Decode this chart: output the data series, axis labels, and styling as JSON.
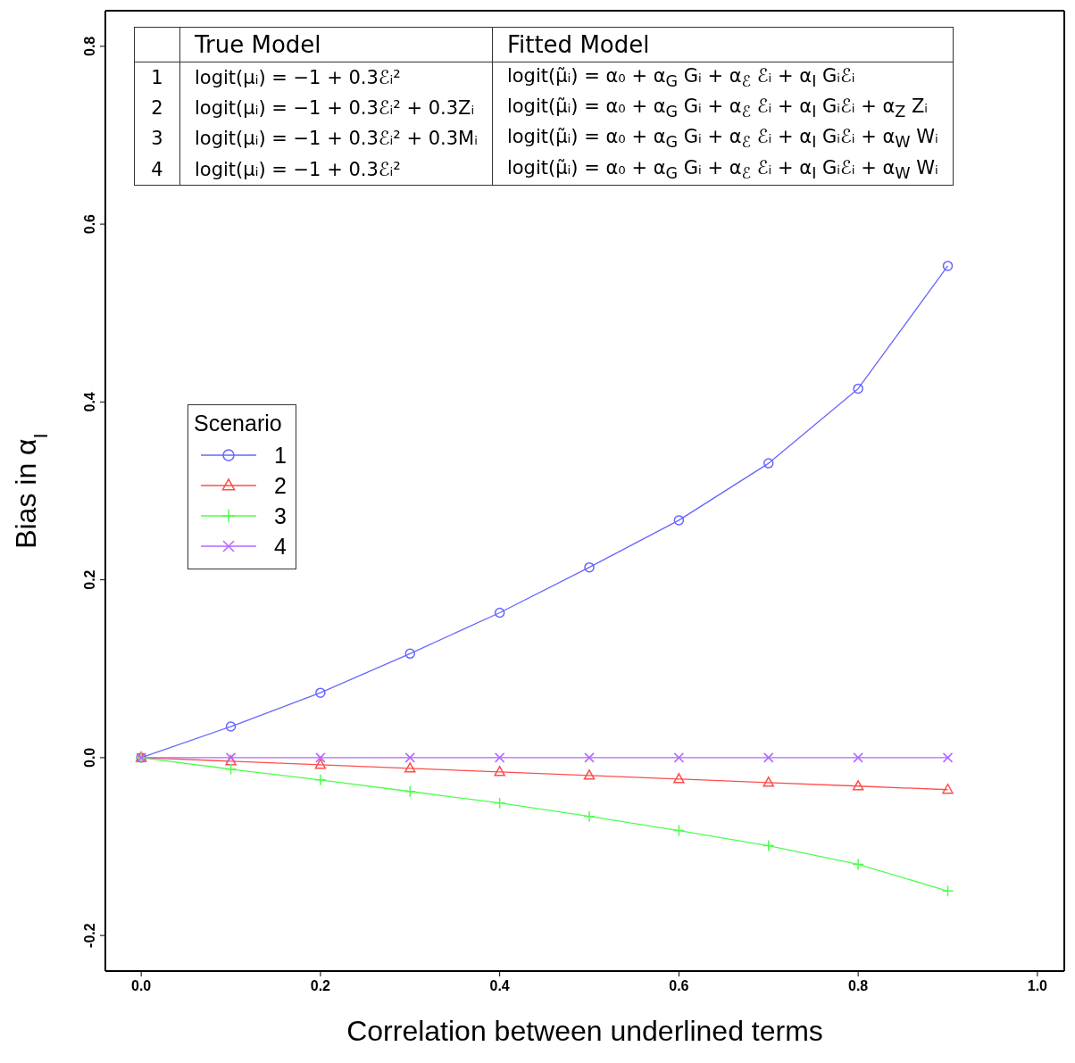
{
  "chart_data": {
    "type": "line",
    "xlabel": "Correlation between underlined terms",
    "ylabel": "Bias in α$_{I}$",
    "legend_title": "Scenario",
    "legend": "left",
    "x": [
      0,
      0.1,
      0.2,
      0.3,
      0.4,
      0.5,
      0.6,
      0.7,
      0.8,
      0.9
    ],
    "series": [
      {
        "name": "1",
        "color": "#6666ff",
        "marker": "circle",
        "values": [
          0,
          0.035,
          0.073,
          0.117,
          0.163,
          0.214,
          0.267,
          0.331,
          0.415,
          0.553
        ]
      },
      {
        "name": "2",
        "color": "#ff4d4d",
        "marker": "triangle",
        "values": [
          0,
          -0.004,
          -0.008,
          -0.012,
          -0.016,
          -0.02,
          -0.024,
          -0.028,
          -0.032,
          -0.036
        ]
      },
      {
        "name": "3",
        "color": "#4dff4d",
        "marker": "plus",
        "values": [
          0,
          -0.013,
          -0.025,
          -0.038,
          -0.051,
          -0.066,
          -0.082,
          -0.099,
          -0.12,
          -0.15
        ]
      },
      {
        "name": "4",
        "color": "#b266ff",
        "marker": "cross",
        "values": [
          0,
          0,
          0,
          0,
          0,
          0,
          0,
          0,
          0,
          0
        ]
      }
    ],
    "xlim": [
      -0.04,
      1.03
    ],
    "xticks": [
      {
        "value": 0,
        "label": "0.0"
      },
      0.2,
      0.4,
      0.6,
      0.8,
      {
        "value": 1,
        "label": "1.0"
      }
    ],
    "ylim": [
      -0.24,
      0.84
    ],
    "yticks": [
      -0.2,
      {
        "value": 0,
        "label": "0.0"
      },
      0.2,
      0.4,
      0.6,
      0.8
    ],
    "annotations": [
      "True Model",
      "Fitted Model",
      "1",
      "logit(μᵢ) = −1 + 0.3ℰᵢ²",
      "logit(μ̃ᵢ) = α₀ + α$_{G}$ Gᵢ + α$_{ℰ}$ ℰᵢ + α$_{I}$ Gᵢℰᵢ",
      "2",
      "logit(μᵢ) = −1 + 0.3ℰᵢ² + 0.3Zᵢ",
      "logit(μ̃ᵢ) = α₀ + α$_{G}$ Gᵢ + α$_{ℰ}$ ℰᵢ + α$_{I}$ Gᵢℰᵢ + α$_{Z}$ Zᵢ",
      "3",
      "logit(μᵢ) = −1 + 0.3ℰᵢ² + 0.3Mᵢ",
      "logit(μ̃ᵢ) = α₀ + α$_{G}$ Gᵢ + α$_{ℰ}$ ℰᵢ + α$_{I}$ Gᵢℰᵢ + α$_{W}$ Wᵢ",
      "4",
      "logit(μᵢ) = −1 + 0.3ℰᵢ²",
      "logit(μ̃ᵢ) = α₀ + α$_{G}$ Gᵢ + α$_{ℰ}$ ℰᵢ + α$_{I}$ Gᵢℰᵢ + α$_{W}$ Wᵢ"
    ]
  }
}
